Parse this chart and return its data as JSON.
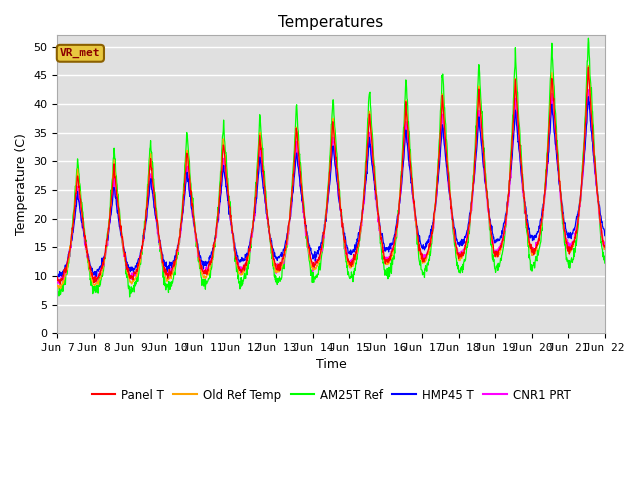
{
  "title": "Temperatures",
  "xlabel": "Time",
  "ylabel": "Temperature (C)",
  "ylim": [
    0,
    52
  ],
  "background_color": "#e0e0e0",
  "annotation_text": "VR_met",
  "annotation_box_color": "#e8c840",
  "annotation_text_color": "#8b0000",
  "legend_entries": [
    "Panel T",
    "Old Ref Temp",
    "AM25T Ref",
    "HMP45 T",
    "CNR1 PRT"
  ],
  "line_colors": [
    "red",
    "orange",
    "lime",
    "blue",
    "magenta"
  ],
  "x_tick_labels": [
    "Jun 7",
    "Jun 8",
    "Jun 9",
    "Jun 10",
    "Jun 11",
    "Jun 12",
    "Jun 13",
    "Jun 14",
    "Jun 15",
    "Jun 16",
    "Jun 17",
    "Jun 18",
    "Jun 19",
    "Jun 20",
    "Jun 21",
    "Jun 22"
  ],
  "title_fontsize": 11,
  "axis_fontsize": 9,
  "tick_fontsize": 8,
  "figsize": [
    6.4,
    4.8
  ],
  "dpi": 100
}
